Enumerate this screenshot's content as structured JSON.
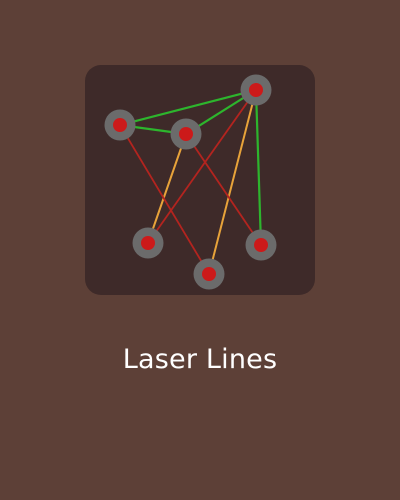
{
  "app": {
    "title": "Laser Lines",
    "icon_name": "laser-lines-icon"
  },
  "colors": {
    "background": "#5d4037",
    "card": "#3e2a29",
    "node_ring": "#6b6b6b",
    "node_core": "#cc1a1a",
    "line_green": "#2db52d",
    "line_orange": "#e8a33a",
    "line_red": "#b3241f",
    "title_text": "#ffffff"
  }
}
